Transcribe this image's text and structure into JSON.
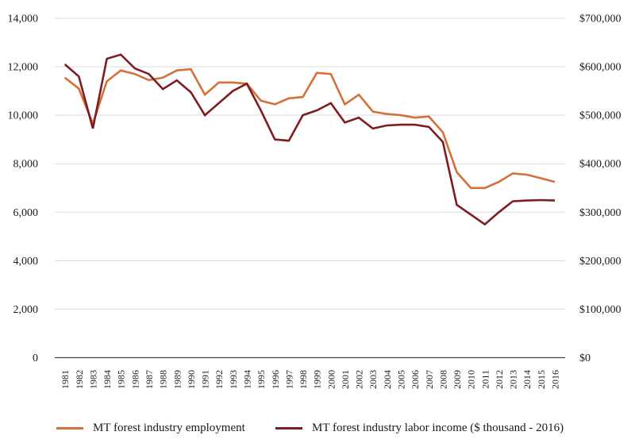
{
  "chart_data": {
    "type": "line",
    "title": "",
    "categories": [
      "1981",
      "1982",
      "1983",
      "1984",
      "1985",
      "1986",
      "1987",
      "1988",
      "1989",
      "1990",
      "1991",
      "1992",
      "1993",
      "1994",
      "1995",
      "1996",
      "1997",
      "1998",
      "1999",
      "2000",
      "2001",
      "2002",
      "2003",
      "2004",
      "2005",
      "2006",
      "2007",
      "2008",
      "2009",
      "2010",
      "2011",
      "2012",
      "2013",
      "2014",
      "2015",
      "2016"
    ],
    "series": [
      {
        "name": "MT forest industry employment",
        "axis": "left",
        "color": "#D4703A",
        "values": [
          11550,
          11100,
          9650,
          11400,
          11850,
          11700,
          11450,
          11550,
          11850,
          11900,
          10850,
          11350,
          11350,
          11300,
          10600,
          10450,
          10700,
          10750,
          11750,
          11700,
          10450,
          10850,
          10150,
          10050,
          10000,
          9900,
          9950,
          9300,
          7650,
          7000,
          7000,
          7250,
          7600,
          7550,
          7400,
          7250
        ]
      },
      {
        "name": "MT forest industry labor income ($ thousand - 2016)",
        "axis": "right",
        "color": "#7E1D21",
        "values": [
          605000,
          580000,
          472500,
          616500,
          625000,
          596500,
          585000,
          554000,
          572000,
          547500,
          500000,
          525000,
          550000,
          565000,
          510000,
          450000,
          447500,
          500000,
          510000,
          525000,
          485000,
          495000,
          472500,
          479000,
          480500,
          480500,
          476000,
          445000,
          315000,
          295000,
          275000,
          300000,
          322500,
          324000,
          325000,
          324000
        ]
      }
    ],
    "left_axis": {
      "min": 0,
      "max": 14000,
      "step": 2000,
      "tick_labels_top_to_bottom": [
        "14,000",
        "12,000",
        "10,000",
        "8,000",
        "6,000",
        "4,000",
        "2,000",
        "0"
      ]
    },
    "right_axis": {
      "min": 0,
      "max": 700000,
      "step": 100000,
      "tick_labels_top_to_bottom": [
        "$700,000",
        "$600,000",
        "$500,000",
        "$400,000",
        "$300,000",
        "$200,000",
        "$100,000",
        "$0"
      ]
    },
    "grid": true,
    "legend_position": "bottom",
    "colors": {
      "gridline": "#D9D9D9",
      "axis_line": "#404040",
      "tick_text": "#1a1a1a"
    }
  },
  "legend": {
    "item1": "MT forest industry employment",
    "item2": "MT forest industry labor income ($ thousand - 2016)"
  }
}
